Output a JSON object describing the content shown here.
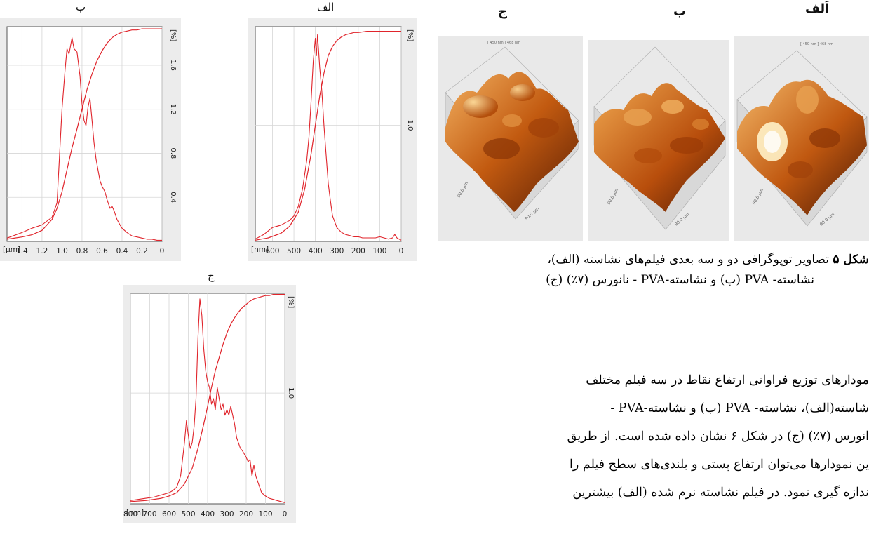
{
  "plot_labels": {
    "left": "ب",
    "middle": "الف",
    "bottom": "ج"
  },
  "afm_labels": {
    "a": "اَلف",
    "b": "ب",
    "c": "ج"
  },
  "afm_header_text": "[ 450 nm ] 468 nm",
  "afm_axis_text": "90.0 µm",
  "caption": {
    "bold": "شکل ۵",
    "line1": " تصاویر توپوگرافی دو و سه بعدی فیلم‌های نشاسته (الف)،",
    "line2": "نشاسته- PVA (ب) و نشاسته-PVA - نانورس (۷٪) (ج)"
  },
  "body_lines": [
    "مودارهای توزیع فراوانی ارتفاع نقاط در سه فیلم مختلف",
    "شاسته(الف)، نشاسته- PVA (ب) و نشاسته-PVA -",
    "انورس (۷٪) (ج) در شکل ۶ نشان داده شده است. از طریق",
    "ین نمودارها می‌توان ارتفاع پستی و بلندی‌های سطح فیلم را",
    "ندازه گیری نمود. در فیلم نشاسته نرم شده (الف) بیشترین"
  ],
  "chart_data": [
    {
      "id": "left",
      "type": "line",
      "panel_label": "ب",
      "unit_label": "[µm]",
      "x_ticks": [
        "1.4",
        "1.2",
        "1.0",
        "0.8",
        "0.6",
        "0.4",
        "0.2",
        "0"
      ],
      "x_range": [
        1.55,
        0
      ],
      "y_ticks": [
        "0.4",
        "0.8",
        "1.2",
        "1.6"
      ],
      "y_tick_values": [
        0.4,
        0.8,
        1.2,
        1.6
      ],
      "y_range": [
        0,
        1.95
      ],
      "percent_label": "[%]",
      "series": [
        {
          "x": [
            1.55,
            1.4,
            1.3,
            1.2,
            1.1,
            1.05,
            1.0,
            0.97,
            0.95,
            0.93,
            0.9,
            0.88,
            0.85,
            0.82,
            0.8,
            0.78,
            0.76,
            0.74,
            0.72,
            0.7,
            0.68,
            0.66,
            0.64,
            0.62,
            0.6,
            0.57,
            0.55,
            0.52,
            0.5,
            0.48,
            0.45,
            0.42,
            0.4,
            0.35,
            0.3,
            0.25,
            0.2,
            0.15,
            0.1,
            0.05,
            0
          ],
          "y": [
            0.03,
            0.08,
            0.12,
            0.15,
            0.22,
            0.35,
            1.2,
            1.55,
            1.75,
            1.7,
            1.85,
            1.75,
            1.72,
            1.5,
            1.25,
            1.1,
            1.05,
            1.22,
            1.3,
            1.1,
            0.9,
            0.75,
            0.65,
            0.55,
            0.5,
            0.45,
            0.38,
            0.3,
            0.32,
            0.28,
            0.2,
            0.15,
            0.12,
            0.08,
            0.05,
            0.04,
            0.03,
            0.02,
            0.02,
            0.01,
            0.01
          ]
        },
        {
          "x": [
            1.55,
            1.4,
            1.3,
            1.2,
            1.1,
            1.05,
            1.0,
            0.95,
            0.9,
            0.85,
            0.8,
            0.75,
            0.7,
            0.65,
            0.6,
            0.55,
            0.5,
            0.45,
            0.4,
            0.35,
            0.3,
            0.25,
            0.2,
            0.15,
            0.1,
            0.05,
            0
          ],
          "y": [
            0.02,
            0.04,
            0.06,
            0.1,
            0.2,
            0.3,
            0.45,
            0.65,
            0.85,
            1.02,
            1.2,
            1.38,
            1.52,
            1.64,
            1.73,
            1.8,
            1.85,
            1.88,
            1.9,
            1.91,
            1.92,
            1.92,
            1.93,
            1.93,
            1.93,
            1.93,
            1.93
          ]
        }
      ]
    },
    {
      "id": "middle",
      "type": "line",
      "panel_label": "الف",
      "unit_label": "[nm]",
      "x_ticks": [
        "600",
        "500",
        "400",
        "300",
        "200",
        "100",
        "0"
      ],
      "x_range": [
        680,
        0
      ],
      "y_ticks": [
        "1.0"
      ],
      "y_tick_values": [
        1.0
      ],
      "y_range": [
        0,
        1.85
      ],
      "percent_label": "[%]",
      "series": [
        {
          "x": [
            680,
            640,
            600,
            560,
            520,
            500,
            480,
            460,
            440,
            430,
            420,
            410,
            400,
            395,
            390,
            385,
            380,
            375,
            370,
            365,
            360,
            350,
            340,
            330,
            320,
            300,
            280,
            260,
            240,
            220,
            200,
            180,
            160,
            140,
            120,
            100,
            80,
            60,
            40,
            30,
            20,
            10,
            0
          ],
          "y": [
            0.02,
            0.06,
            0.12,
            0.14,
            0.18,
            0.22,
            0.3,
            0.45,
            0.7,
            0.9,
            1.2,
            1.55,
            1.75,
            1.6,
            1.78,
            1.65,
            1.5,
            1.4,
            1.3,
            1.15,
            1.0,
            0.75,
            0.5,
            0.35,
            0.22,
            0.12,
            0.08,
            0.06,
            0.05,
            0.04,
            0.04,
            0.03,
            0.03,
            0.03,
            0.03,
            0.04,
            0.03,
            0.02,
            0.03,
            0.06,
            0.03,
            0.02,
            0.01
          ]
        },
        {
          "x": [
            680,
            620,
            560,
            520,
            480,
            450,
            420,
            400,
            380,
            360,
            340,
            320,
            300,
            280,
            260,
            240,
            220,
            200,
            160,
            120,
            80,
            40,
            0
          ],
          "y": [
            0.01,
            0.03,
            0.07,
            0.13,
            0.25,
            0.45,
            0.75,
            1.0,
            1.25,
            1.45,
            1.6,
            1.68,
            1.73,
            1.76,
            1.78,
            1.79,
            1.8,
            1.8,
            1.81,
            1.81,
            1.81,
            1.81,
            1.81
          ]
        }
      ]
    },
    {
      "id": "bottom",
      "type": "line",
      "panel_label": "ج",
      "unit_label": "[nm]",
      "x_ticks": [
        "800",
        "700",
        "600",
        "500",
        "400",
        "300",
        "200",
        "100",
        "0"
      ],
      "x_range": [
        800,
        0
      ],
      "y_ticks": [
        "1.0"
      ],
      "y_tick_values": [
        1.0
      ],
      "y_range": [
        0,
        1.9
      ],
      "percent_label": "[%]",
      "series": [
        {
          "x": [
            800,
            760,
            720,
            680,
            640,
            600,
            580,
            560,
            540,
            520,
            510,
            500,
            490,
            480,
            470,
            460,
            450,
            440,
            430,
            420,
            410,
            400,
            390,
            380,
            370,
            360,
            350,
            340,
            330,
            320,
            310,
            300,
            290,
            280,
            270,
            260,
            250,
            240,
            230,
            220,
            210,
            200,
            190,
            180,
            170,
            160,
            150,
            140,
            120,
            100,
            80,
            60,
            40,
            20,
            0
          ],
          "y": [
            0.03,
            0.04,
            0.05,
            0.06,
            0.08,
            0.1,
            0.12,
            0.15,
            0.25,
            0.55,
            0.75,
            0.62,
            0.5,
            0.55,
            0.7,
            0.95,
            1.5,
            1.85,
            1.7,
            1.4,
            1.2,
            1.1,
            1.05,
            0.9,
            0.95,
            0.85,
            1.05,
            0.95,
            0.85,
            0.9,
            0.8,
            0.85,
            0.8,
            0.88,
            0.8,
            0.72,
            0.6,
            0.55,
            0.5,
            0.48,
            0.45,
            0.42,
            0.38,
            0.4,
            0.25,
            0.35,
            0.25,
            0.2,
            0.1,
            0.07,
            0.05,
            0.04,
            0.03,
            0.02,
            0.01
          ]
        },
        {
          "x": [
            800,
            720,
            640,
            600,
            560,
            520,
            480,
            450,
            420,
            400,
            380,
            360,
            340,
            320,
            300,
            280,
            260,
            240,
            220,
            200,
            180,
            160,
            140,
            120,
            100,
            80,
            60,
            40,
            20,
            0
          ],
          "y": [
            0.02,
            0.03,
            0.05,
            0.07,
            0.1,
            0.18,
            0.32,
            0.5,
            0.72,
            0.88,
            1.05,
            1.2,
            1.32,
            1.44,
            1.54,
            1.62,
            1.68,
            1.73,
            1.77,
            1.8,
            1.83,
            1.85,
            1.86,
            1.87,
            1.88,
            1.88,
            1.89,
            1.89,
            1.89,
            1.89
          ]
        }
      ]
    }
  ]
}
